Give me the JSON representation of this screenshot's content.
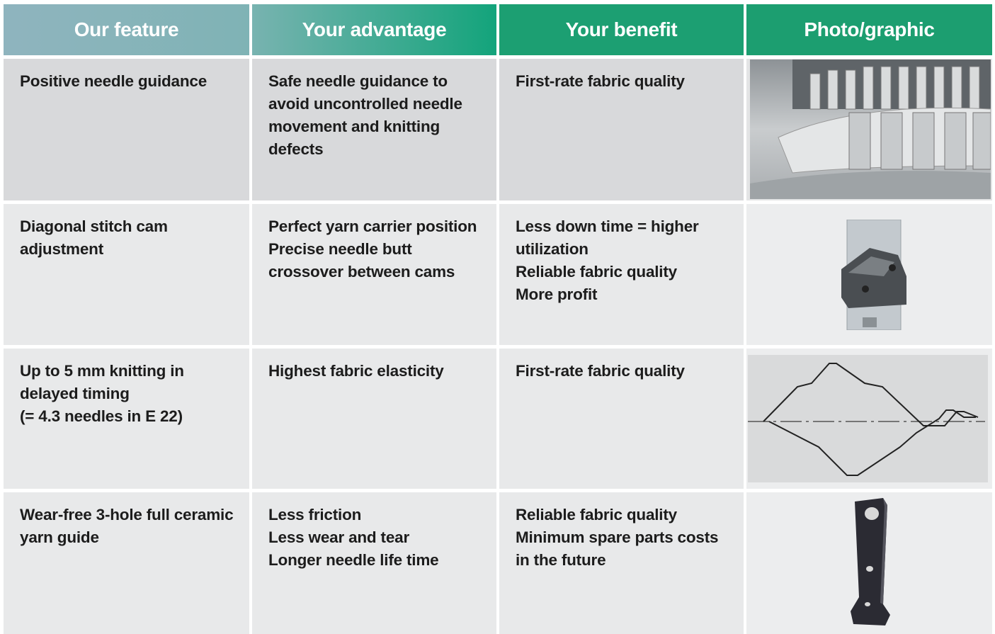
{
  "table": {
    "header": [
      "Our feature",
      "Your advantage",
      "Your benefit",
      "Photo/graphic"
    ],
    "rows": [
      [
        [
          "Positive needle guidance"
        ],
        [
          "Safe needle guidance to avoid uncontrolled needle movement and knitting defects"
        ],
        [
          "First-rate fabric quality"
        ]
      ],
      [
        [
          "Diagonal stitch cam adjustment"
        ],
        [
          "Perfect yarn carrier position",
          "Precise needle butt crossover between cams"
        ],
        [
          "Less down time = higher utilization",
          "Reliable fabric quality",
          "More profit"
        ]
      ],
      [
        [
          "Up to 5 mm knitting in delayed timing",
          "(= 4.3 needles in E 22)"
        ],
        [
          "Highest fabric elasticity"
        ],
        [
          "First-rate fabric quality"
        ]
      ],
      [
        [
          "Wear-free 3-hole full ceramic yarn guide"
        ],
        [
          "Less friction",
          "Less wear and tear",
          "Longer needle life time"
        ],
        [
          "Reliable fabric quality",
          "Minimum spare parts costs in the future"
        ]
      ]
    ]
  }
}
